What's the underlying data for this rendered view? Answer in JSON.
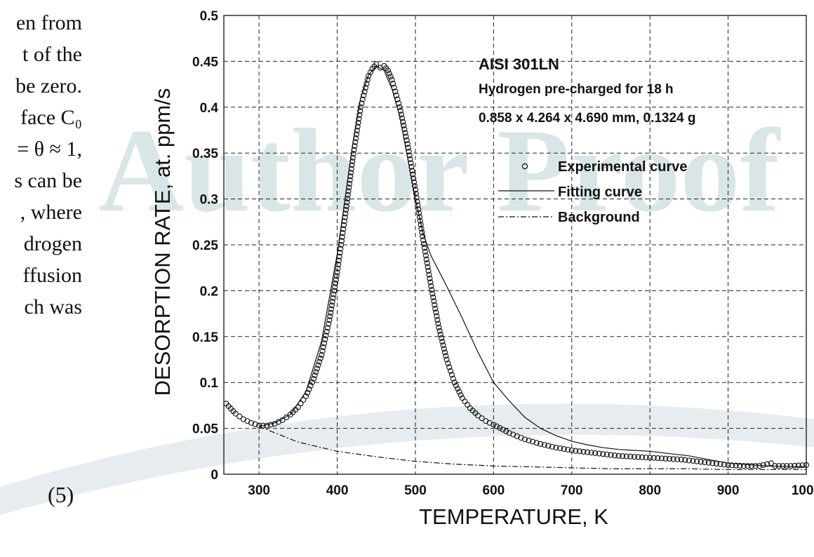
{
  "page": {
    "body_text_lines": [
      "en from",
      "t of the",
      "be zero.",
      "face C₀",
      "= θ ≈ 1,",
      "s can be",
      ", where",
      "drogen",
      "ffusion",
      "ch  was"
    ],
    "equation_number": "(5)",
    "watermark": "Author Proof"
  },
  "chart_data": {
    "type": "scatter",
    "title": "AISI 301LN",
    "annotations": [
      "Hydrogen pre-charged for 18 h",
      "0.858 x 4.264 x 4.690 mm, 0.1324 g"
    ],
    "xlabel": "TEMPERATURE, K",
    "ylabel": "DESORPTION RATE, at. ppm/s",
    "xlim": [
      255,
      1000
    ],
    "ylim": [
      0,
      0.5
    ],
    "x_ticks": [
      300,
      400,
      500,
      600,
      700,
      800,
      900,
      1000
    ],
    "x_tick_labels": [
      "300",
      "400",
      "500",
      "600",
      "700",
      "800",
      "900",
      "1000"
    ],
    "y_ticks": [
      0,
      0.05,
      0.1,
      0.15,
      0.2,
      0.25,
      0.3,
      0.35,
      0.4,
      0.45,
      0.5
    ],
    "y_tick_labels": [
      "0",
      "0.05",
      "0.1",
      "0.15",
      "0.2",
      "0.25",
      "0.3",
      "0.35",
      "0.4",
      "0.45",
      "0.5"
    ],
    "grid": true,
    "legend_position": "top-right",
    "series": [
      {
        "name": "Experimental curve",
        "style": "markers",
        "x": [
          258,
          270,
          280,
          290,
          300,
          310,
          320,
          330,
          340,
          350,
          360,
          370,
          380,
          390,
          400,
          410,
          420,
          430,
          440,
          445,
          450,
          455,
          460,
          465,
          470,
          480,
          490,
          500,
          510,
          520,
          530,
          540,
          550,
          560,
          570,
          580,
          590,
          600,
          620,
          640,
          660,
          680,
          700,
          720,
          740,
          760,
          780,
          800,
          820,
          840,
          860,
          880,
          900,
          920,
          940,
          955,
          960,
          980,
          1000
        ],
        "y": [
          0.077,
          0.066,
          0.06,
          0.056,
          0.053,
          0.053,
          0.055,
          0.059,
          0.065,
          0.073,
          0.085,
          0.104,
          0.13,
          0.168,
          0.22,
          0.28,
          0.345,
          0.4,
          0.434,
          0.442,
          0.447,
          0.443,
          0.445,
          0.44,
          0.43,
          0.4,
          0.36,
          0.31,
          0.255,
          0.205,
          0.16,
          0.125,
          0.1,
          0.083,
          0.072,
          0.064,
          0.058,
          0.054,
          0.045,
          0.038,
          0.033,
          0.029,
          0.026,
          0.024,
          0.022,
          0.02,
          0.019,
          0.018,
          0.017,
          0.016,
          0.014,
          0.012,
          0.01,
          0.009,
          0.009,
          0.012,
          0.009,
          0.009,
          0.01
        ]
      },
      {
        "name": "Fitting curve",
        "style": "solid",
        "x": [
          300,
          320,
          340,
          360,
          380,
          400,
          410,
          420,
          430,
          440,
          450,
          460,
          470,
          480,
          490,
          500,
          510,
          520,
          540,
          560,
          580,
          600,
          620,
          640,
          660,
          680,
          700,
          720,
          740,
          760,
          800,
          850,
          900,
          950,
          1000
        ],
        "y": [
          0.052,
          0.056,
          0.065,
          0.09,
          0.145,
          0.24,
          0.3,
          0.36,
          0.41,
          0.435,
          0.445,
          0.44,
          0.42,
          0.39,
          0.345,
          0.3,
          0.262,
          0.238,
          0.205,
          0.17,
          0.133,
          0.1,
          0.08,
          0.062,
          0.05,
          0.042,
          0.036,
          0.032,
          0.029,
          0.027,
          0.025,
          0.02,
          0.012,
          0.009,
          0.008
        ]
      },
      {
        "name": "Background",
        "style": "dashdot",
        "x": [
          300,
          350,
          400,
          450,
          500,
          550,
          600,
          650,
          700,
          750,
          800,
          850,
          900,
          950,
          1000
        ],
        "y": [
          0.052,
          0.035,
          0.025,
          0.019,
          0.014,
          0.011,
          0.009,
          0.008,
          0.007,
          0.006,
          0.006,
          0.006,
          0.005,
          0.005,
          0.005
        ]
      }
    ]
  }
}
